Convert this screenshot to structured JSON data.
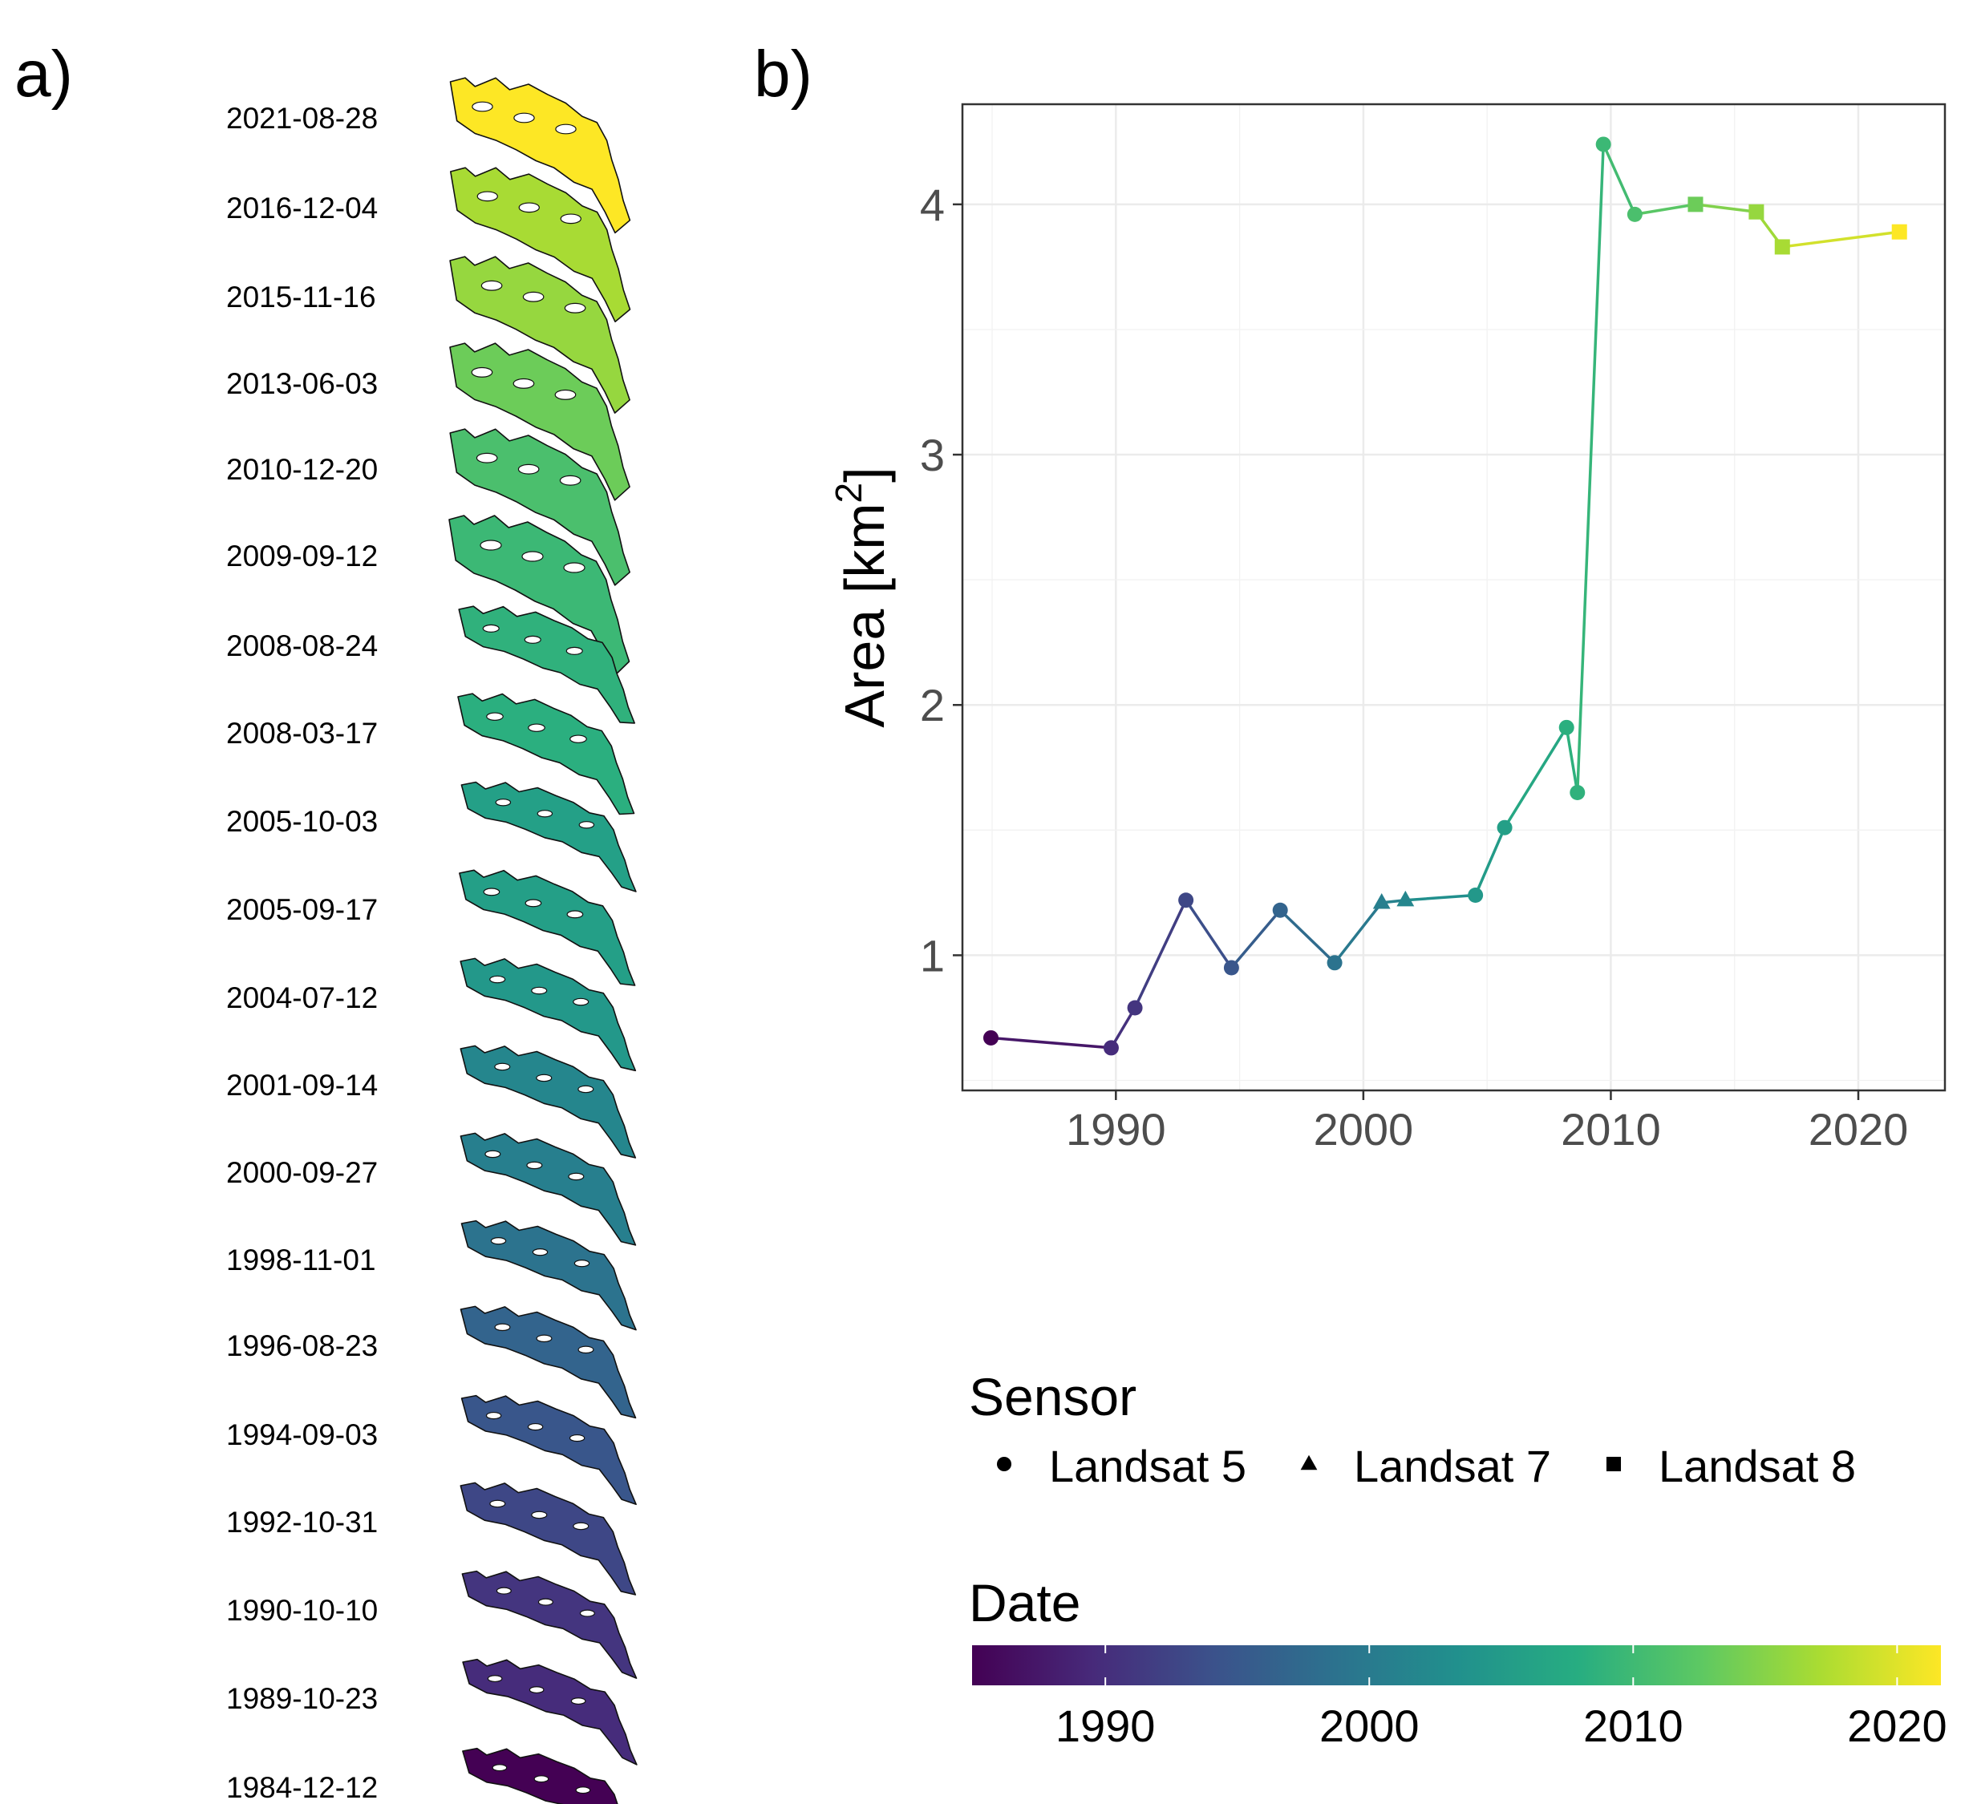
{
  "panels": {
    "a_label": "a)",
    "b_label": "b)"
  },
  "panel_a": {
    "dates": [
      "2021-08-28",
      "2016-12-04",
      "2015-11-16",
      "2013-06-03",
      "2010-12-20",
      "2009-09-12",
      "2008-08-24",
      "2008-03-17",
      "2005-10-03",
      "2005-09-17",
      "2004-07-12",
      "2001-09-14",
      "2000-09-27",
      "1998-11-01",
      "1996-08-23",
      "1994-09-03",
      "1992-10-31",
      "1990-10-10",
      "1989-10-23",
      "1984-12-12"
    ]
  },
  "chart_data": {
    "type": "line",
    "title": "",
    "xlabel": "",
    "ylabel": "Area [km²]",
    "ylabel_main": "Area ",
    "ylabel_unit": "[km",
    "ylabel_sup": "2",
    "ylabel_close": "]",
    "xlim": [
      1983.8,
      2023.5
    ],
    "ylim": [
      0.46,
      4.4
    ],
    "xticks": [
      1990,
      2000,
      2010,
      2020
    ],
    "xtick_labels": [
      "1990",
      "2000",
      "2010",
      "2020"
    ],
    "yticks": [
      1,
      2,
      3,
      4
    ],
    "ytick_labels": [
      "1",
      "2",
      "3",
      "4"
    ],
    "grid": true,
    "points": [
      {
        "date": "1984-12-12",
        "year": 1984.95,
        "area": 0.67,
        "sensor": "Landsat 5"
      },
      {
        "date": "1989-10-23",
        "year": 1989.81,
        "area": 0.63,
        "sensor": "Landsat 5"
      },
      {
        "date": "1990-10-10",
        "year": 1990.77,
        "area": 0.79,
        "sensor": "Landsat 5"
      },
      {
        "date": "1992-10-31",
        "year": 1992.83,
        "area": 1.22,
        "sensor": "Landsat 5"
      },
      {
        "date": "1994-09-03",
        "year": 1994.67,
        "area": 0.95,
        "sensor": "Landsat 5"
      },
      {
        "date": "1996-08-23",
        "year": 1996.64,
        "area": 1.18,
        "sensor": "Landsat 5"
      },
      {
        "date": "1998-11-01",
        "year": 1998.84,
        "area": 0.97,
        "sensor": "Landsat 5"
      },
      {
        "date": "2000-09-27",
        "year": 2000.74,
        "area": 1.21,
        "sensor": "Landsat 7"
      },
      {
        "date": "2001-09-14",
        "year": 2001.7,
        "area": 1.22,
        "sensor": "Landsat 7"
      },
      {
        "date": "2004-07-12",
        "year": 2004.53,
        "area": 1.24,
        "sensor": "Landsat 5"
      },
      {
        "date": "2005-09-17",
        "year": 2005.71,
        "area": 1.51,
        "sensor": "Landsat 5"
      },
      {
        "date": "2008-03-17",
        "year": 2008.21,
        "area": 1.91,
        "sensor": "Landsat 5"
      },
      {
        "date": "2008-08-24",
        "year": 2008.65,
        "area": 1.65,
        "sensor": "Landsat 5"
      },
      {
        "date": "2009-09-12",
        "year": 2009.7,
        "area": 4.24,
        "sensor": "Landsat 5"
      },
      {
        "date": "2010-12-20",
        "year": 2010.97,
        "area": 3.96,
        "sensor": "Landsat 5"
      },
      {
        "date": "2013-06-03",
        "year": 2013.42,
        "area": 4.0,
        "sensor": "Landsat 8"
      },
      {
        "date": "2015-11-16",
        "year": 2015.88,
        "area": 3.97,
        "sensor": "Landsat 8"
      },
      {
        "date": "2016-12-04",
        "year": 2016.93,
        "area": 3.83,
        "sensor": "Landsat 8"
      },
      {
        "date": "2021-08-28",
        "year": 2021.66,
        "area": 3.89,
        "sensor": "Landsat 8"
      }
    ]
  },
  "legend": {
    "sensor_title": "Sensor",
    "sensors": [
      {
        "label": "Landsat 5",
        "shape": "circle"
      },
      {
        "label": "Landsat 7",
        "shape": "triangle"
      },
      {
        "label": "Landsat 8",
        "shape": "square"
      }
    ],
    "date_title": "Date",
    "colorbar_range": [
      1984.95,
      2021.66
    ],
    "colorbar_ticks": [
      1990,
      2000,
      2010,
      2020
    ],
    "colorbar_tick_labels": [
      "1990",
      "2000",
      "2010",
      "2020"
    ],
    "palette": [
      "#440154",
      "#472a7a",
      "#3b528b",
      "#2c728e",
      "#21908d",
      "#27ad81",
      "#5cc863",
      "#aadc32",
      "#fde725"
    ]
  }
}
